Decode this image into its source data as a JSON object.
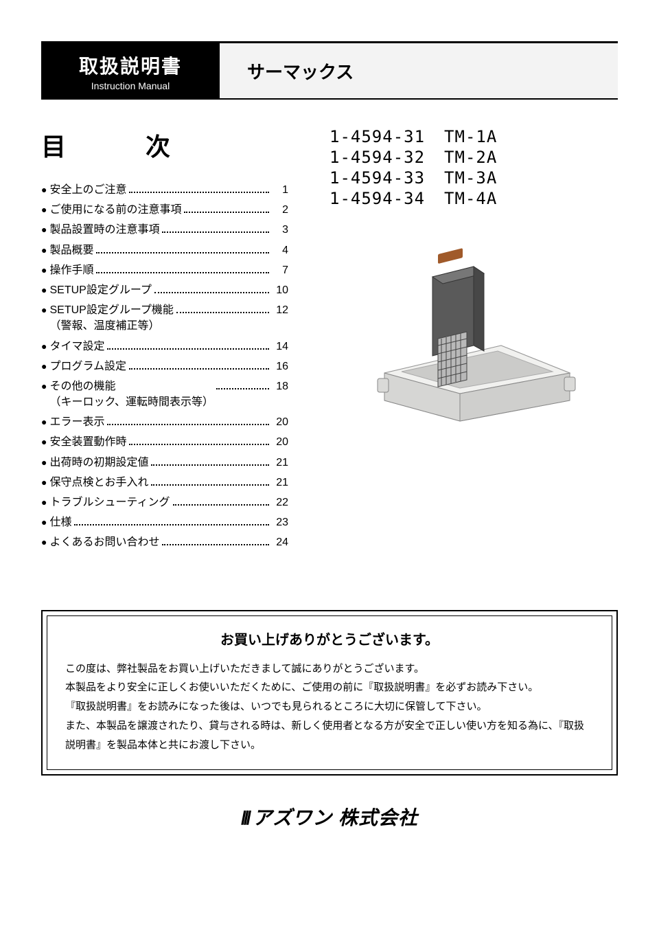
{
  "header": {
    "title_jp": "取扱説明書",
    "title_en": "Instruction Manual",
    "product_name": "サーマックス"
  },
  "toc": {
    "heading": "目　次",
    "items": [
      {
        "label": "安全上のご注意",
        "page": "1"
      },
      {
        "label": "ご使用になる前の注意事項",
        "page": "2"
      },
      {
        "label": "製品設置時の注意事項",
        "page": "3"
      },
      {
        "label": "製品概要",
        "page": "4"
      },
      {
        "label": "操作手順",
        "page": "7"
      },
      {
        "label": "SETUP設定グループ",
        "page": "10"
      },
      {
        "label": "SETUP設定グループ機能\n（警報、温度補正等）",
        "page": "12"
      },
      {
        "label": "タイマ設定",
        "page": "14"
      },
      {
        "label": "プログラム設定",
        "page": "16"
      },
      {
        "label": "その他の機能\n（キーロック、運転時間表示等）",
        "page": "18"
      },
      {
        "label": "エラー表示",
        "page": "20"
      },
      {
        "label": "安全装置動作時",
        "page": "20"
      },
      {
        "label": "出荷時の初期設定値",
        "page": "21"
      },
      {
        "label": "保守点検とお手入れ",
        "page": "21"
      },
      {
        "label": "トラブルシューティング",
        "page": "22"
      },
      {
        "label": "仕様",
        "page": "23"
      },
      {
        "label": "よくあるお問い合わせ",
        "page": "24"
      }
    ]
  },
  "models": [
    {
      "code": "1-4594-31",
      "name": "TM-1A"
    },
    {
      "code": "1-4594-32",
      "name": "TM-2A"
    },
    {
      "code": "1-4594-33",
      "name": "TM-3A"
    },
    {
      "code": "1-4594-34",
      "name": "TM-4A"
    }
  ],
  "thanks": {
    "title": "お買い上げありがとうございます。",
    "body": "この度は、弊社製品をお買い上げいただきまして誠にありがとうございます。\n本製品をより安全に正しくお使いいただくために、ご使用の前に『取扱説明書』を必ずお読み下さい。\n『取扱説明書』をお読みになった後は、いつでも見られるところに大切に保管して下さい。\nまた、本製品を譲渡されたり、貸与される時は、新しく使用者となる方が安全で正しい使い方を知る為に、『取扱説明書』を製品本体と共にお渡し下さい。"
  },
  "company": "アズワン 株式会社"
}
